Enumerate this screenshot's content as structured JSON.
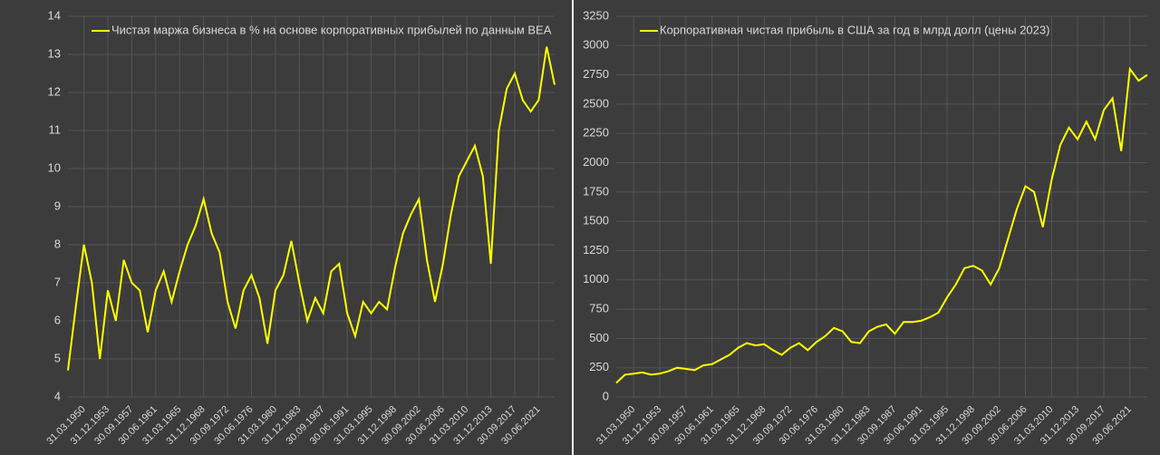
{
  "chart_data": [
    {
      "type": "line",
      "ylim": [
        4,
        14
      ],
      "yticks": [
        4,
        5,
        6,
        7,
        8,
        9,
        10,
        11,
        12,
        13,
        14
      ],
      "grid": true,
      "categories": [
        null,
        null,
        "31.03.1950",
        null,
        null,
        "31.12.1953",
        null,
        null,
        "30.09.1957",
        null,
        null,
        "30.06.1961",
        null,
        null,
        "31.03.1965",
        null,
        null,
        "31.12.1968",
        null,
        null,
        "30.09.1972",
        null,
        null,
        "30.06.1976",
        null,
        null,
        "31.03.1980",
        null,
        null,
        "31.12.1983",
        null,
        null,
        "30.09.1987",
        null,
        null,
        "30.06.1991",
        null,
        null,
        "31.03.1995",
        null,
        null,
        "31.12.1998",
        null,
        null,
        "30.09.2002",
        null,
        null,
        "30.06.2006",
        null,
        null,
        "31.03.2010",
        null,
        null,
        "31.12.2013",
        null,
        null,
        "30.09.2017",
        null,
        null,
        "30.06.2021",
        null,
        null
      ],
      "series": [
        {
          "name": "Чистая маржа бизнеса в % на основе корпоративных прибылей по данным BEA",
          "color": "#ffff00",
          "values": [
            4.7,
            6.4,
            8.0,
            7.0,
            5.0,
            6.8,
            6.0,
            7.6,
            7.0,
            6.8,
            5.7,
            6.8,
            7.3,
            6.5,
            7.3,
            8.0,
            8.5,
            9.2,
            8.3,
            7.8,
            6.5,
            5.8,
            6.8,
            7.2,
            6.6,
            5.4,
            6.8,
            7.2,
            8.1,
            7.0,
            6.0,
            6.6,
            6.2,
            7.3,
            7.5,
            6.2,
            5.6,
            6.5,
            6.2,
            6.5,
            6.3,
            7.4,
            8.3,
            8.8,
            9.2,
            7.6,
            6.5,
            7.5,
            8.8,
            9.8,
            10.2,
            10.6,
            9.8,
            7.5,
            11.0,
            12.1,
            12.5,
            11.8,
            11.5,
            11.8,
            13.2,
            12.2
          ]
        }
      ]
    },
    {
      "type": "line",
      "ylim": [
        0,
        3250
      ],
      "yticks": [
        0,
        250,
        500,
        750,
        1000,
        1250,
        1500,
        1750,
        2000,
        2250,
        2500,
        2750,
        3000,
        3250
      ],
      "grid": true,
      "categories": [
        null,
        null,
        "31.03.1950",
        null,
        null,
        "31.12.1953",
        null,
        null,
        "30.09.1957",
        null,
        null,
        "30.06.1961",
        null,
        null,
        "31.03.1965",
        null,
        null,
        "31.12.1968",
        null,
        null,
        "30.09.1972",
        null,
        null,
        "30.06.1976",
        null,
        null,
        "31.03.1980",
        null,
        null,
        "31.12.1983",
        null,
        null,
        "30.09.1987",
        null,
        null,
        "30.06.1991",
        null,
        null,
        "31.03.1995",
        null,
        null,
        "31.12.1998",
        null,
        null,
        "30.09.2002",
        null,
        null,
        "30.06.2006",
        null,
        null,
        "31.03.2010",
        null,
        null,
        "31.12.2013",
        null,
        null,
        "30.09.2017",
        null,
        null,
        "30.06.2021",
        null,
        null
      ],
      "series": [
        {
          "name": "Корпоративная чистая прибыль в США за год в млрд долл (цены 2023)",
          "color": "#ffff00",
          "values": [
            120,
            190,
            200,
            210,
            190,
            200,
            220,
            250,
            240,
            230,
            270,
            280,
            320,
            360,
            420,
            460,
            440,
            450,
            400,
            360,
            420,
            460,
            400,
            470,
            520,
            590,
            560,
            470,
            460,
            560,
            600,
            620,
            540,
            640,
            640,
            650,
            680,
            720,
            850,
            960,
            1100,
            1120,
            1080,
            960,
            1100,
            1350,
            1600,
            1800,
            1750,
            1450,
            1850,
            2150,
            2300,
            2200,
            2350,
            2200,
            2450,
            2550,
            2100,
            2800,
            2700,
            2750
          ]
        }
      ]
    }
  ]
}
